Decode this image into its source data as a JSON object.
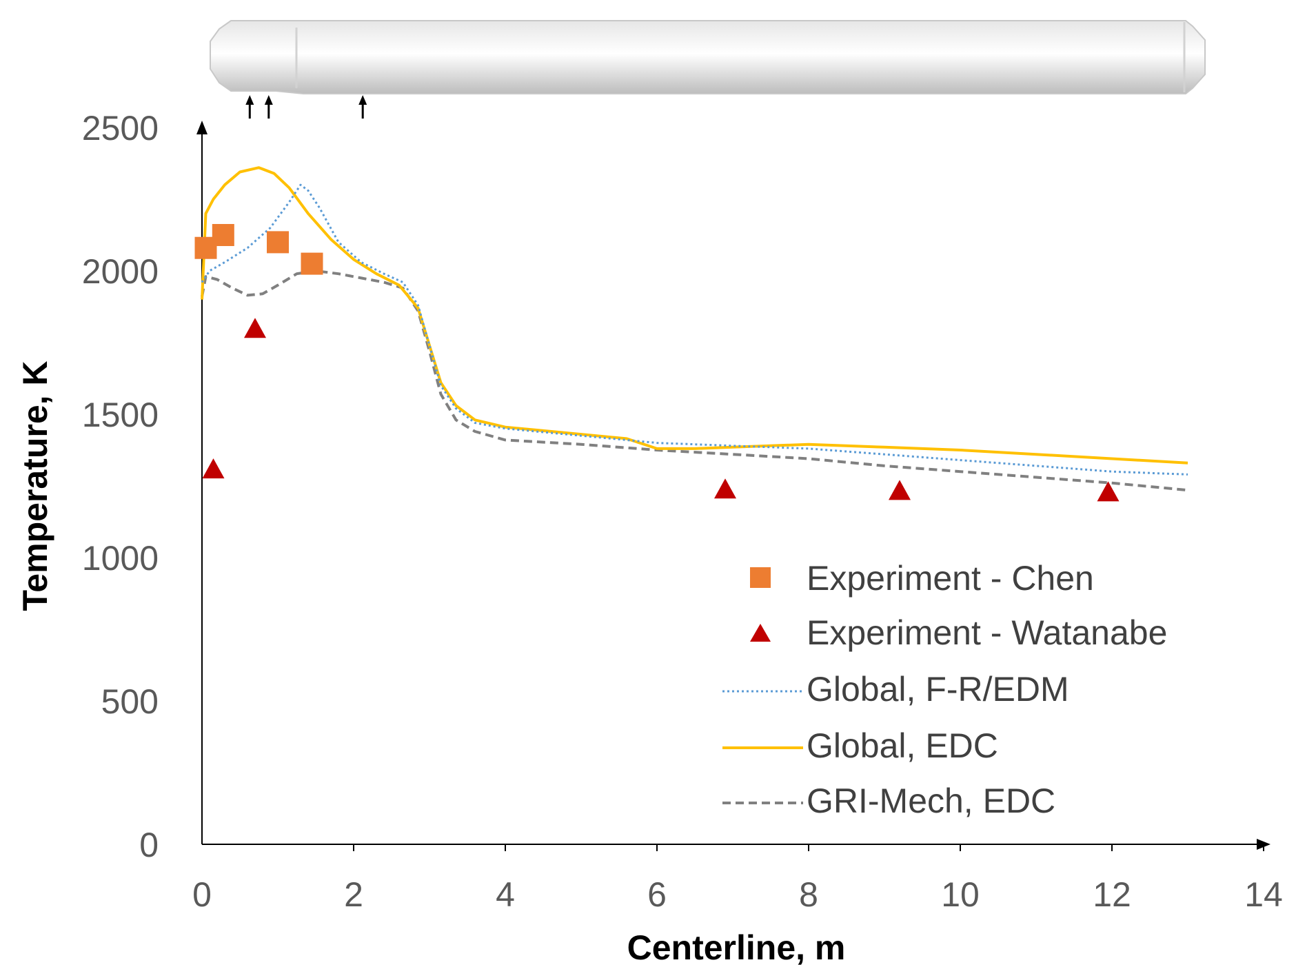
{
  "chart_data": {
    "type": "line",
    "title": "",
    "xlabel": "Centerline, m",
    "ylabel": "Temperature, K",
    "xlim": [
      0,
      14
    ],
    "ylim": [
      0,
      2500
    ],
    "x_ticks": [
      "0",
      "2",
      "4",
      "6",
      "8",
      "10",
      "12",
      "14"
    ],
    "y_ticks": [
      "0",
      "500",
      "1000",
      "1500",
      "2000",
      "2500"
    ],
    "legend_position": "center-right",
    "series": [
      {
        "name": "Experiment - Chen",
        "kind": "marker-square",
        "color": "#ED7D31",
        "points": [
          [
            0.05,
            2080
          ],
          [
            0.28,
            2125
          ],
          [
            1.0,
            2100
          ],
          [
            1.45,
            2025
          ]
        ]
      },
      {
        "name": "Experiment - Watanabe",
        "kind": "marker-triangle",
        "color": "#C00000",
        "points": [
          [
            0.15,
            1305
          ],
          [
            0.7,
            1795
          ],
          [
            6.9,
            1235
          ],
          [
            9.2,
            1230
          ],
          [
            11.95,
            1225
          ]
        ]
      },
      {
        "name": "Global, F-R/EDM",
        "kind": "line-dotted",
        "color": "#5B9BD5",
        "points": [
          [
            0,
            1960
          ],
          [
            0.1,
            2000
          ],
          [
            0.3,
            2030
          ],
          [
            0.6,
            2080
          ],
          [
            0.9,
            2150
          ],
          [
            1.15,
            2240
          ],
          [
            1.3,
            2300
          ],
          [
            1.4,
            2280
          ],
          [
            1.55,
            2220
          ],
          [
            1.8,
            2100
          ],
          [
            2.1,
            2030
          ],
          [
            2.4,
            1990
          ],
          [
            2.65,
            1960
          ],
          [
            2.85,
            1880
          ],
          [
            3.0,
            1740
          ],
          [
            3.15,
            1600
          ],
          [
            3.35,
            1520
          ],
          [
            3.6,
            1470
          ],
          [
            4.0,
            1450
          ],
          [
            5.0,
            1425
          ],
          [
            6.0,
            1400
          ],
          [
            7.0,
            1390
          ],
          [
            8.0,
            1380
          ],
          [
            9.0,
            1360
          ],
          [
            10.0,
            1340
          ],
          [
            11.0,
            1320
          ],
          [
            12.0,
            1300
          ],
          [
            13.0,
            1290
          ]
        ]
      },
      {
        "name": "Global, EDC",
        "kind": "line-solid",
        "color": "#FFC000",
        "points": [
          [
            0,
            1900
          ],
          [
            0.05,
            2200
          ],
          [
            0.15,
            2250
          ],
          [
            0.3,
            2300
          ],
          [
            0.5,
            2345
          ],
          [
            0.75,
            2360
          ],
          [
            0.95,
            2340
          ],
          [
            1.15,
            2290
          ],
          [
            1.4,
            2200
          ],
          [
            1.7,
            2110
          ],
          [
            2.0,
            2040
          ],
          [
            2.3,
            1990
          ],
          [
            2.6,
            1950
          ],
          [
            2.85,
            1870
          ],
          [
            3.0,
            1740
          ],
          [
            3.15,
            1610
          ],
          [
            3.35,
            1530
          ],
          [
            3.6,
            1480
          ],
          [
            4.0,
            1455
          ],
          [
            5.0,
            1430
          ],
          [
            5.6,
            1415
          ],
          [
            6.0,
            1380
          ],
          [
            6.5,
            1380
          ],
          [
            7.0,
            1385
          ],
          [
            8.0,
            1395
          ],
          [
            9.0,
            1385
          ],
          [
            10.0,
            1375
          ],
          [
            11.0,
            1360
          ],
          [
            12.0,
            1345
          ],
          [
            13.0,
            1330
          ]
        ]
      },
      {
        "name": "GRI-Mech, EDC",
        "kind": "line-dashed",
        "color": "#808080",
        "points": [
          [
            0,
            1910
          ],
          [
            0.05,
            1980
          ],
          [
            0.2,
            1970
          ],
          [
            0.4,
            1940
          ],
          [
            0.6,
            1915
          ],
          [
            0.8,
            1920
          ],
          [
            1.0,
            1950
          ],
          [
            1.25,
            1990
          ],
          [
            1.5,
            2000
          ],
          [
            1.8,
            1990
          ],
          [
            2.1,
            1975
          ],
          [
            2.4,
            1960
          ],
          [
            2.65,
            1940
          ],
          [
            2.85,
            1860
          ],
          [
            3.0,
            1720
          ],
          [
            3.15,
            1570
          ],
          [
            3.35,
            1480
          ],
          [
            3.6,
            1440
          ],
          [
            4.0,
            1410
          ],
          [
            5.0,
            1395
          ],
          [
            6.0,
            1375
          ],
          [
            7.0,
            1360
          ],
          [
            8.0,
            1345
          ],
          [
            9.0,
            1320
          ],
          [
            10.0,
            1300
          ],
          [
            11.0,
            1280
          ],
          [
            12.0,
            1260
          ],
          [
            13.0,
            1235
          ]
        ]
      }
    ],
    "inlet_arrows_x": [
      0.63,
      0.88,
      2.12
    ]
  }
}
